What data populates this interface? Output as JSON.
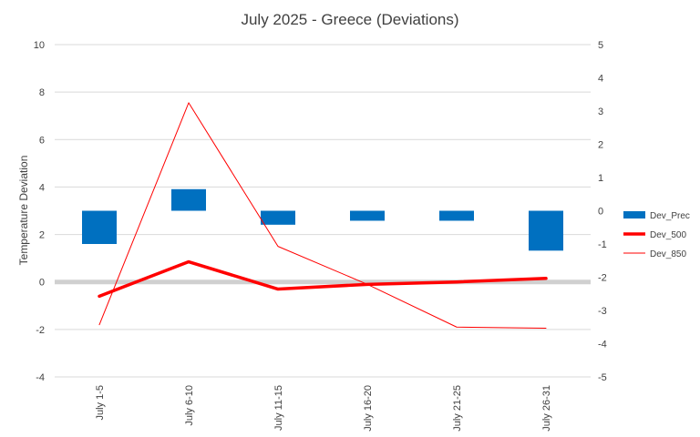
{
  "chart_data": {
    "type": "bar",
    "title": "July 2025 - Greece (Deviations)",
    "categories": [
      "July 1-5",
      "July 6-10",
      "July 11-15",
      "July 16-20",
      "July 21-25",
      "July 26-31"
    ],
    "ylabel": "Temperature Deviation",
    "ylim": [
      -4,
      10
    ],
    "yticks": [
      -4,
      -2,
      0,
      2,
      4,
      6,
      8,
      10
    ],
    "y2lim": [
      -5,
      5
    ],
    "y2ticks": [
      -5,
      -4,
      -3,
      -2,
      -1,
      0,
      1,
      2,
      3,
      4,
      5
    ],
    "grid": true,
    "legend_position": "right",
    "series": [
      {
        "name": "Dev_Prec",
        "type": "bar",
        "axis": "secondary",
        "color": "#0070C0",
        "values": [
          -1.0,
          0.65,
          -0.42,
          -0.3,
          -0.3,
          -1.2
        ]
      },
      {
        "name": "Dev_500",
        "type": "line",
        "axis": "primary",
        "color": "#FF0000",
        "style": "thick",
        "values": [
          -0.6,
          0.85,
          -0.3,
          -0.1,
          0.0,
          0.15
        ]
      },
      {
        "name": "Dev_850",
        "type": "line",
        "axis": "primary",
        "color": "#FF0000",
        "style": "thin",
        "values": [
          -1.8,
          7.55,
          1.5,
          -0.1,
          -1.9,
          -1.95
        ]
      }
    ]
  }
}
